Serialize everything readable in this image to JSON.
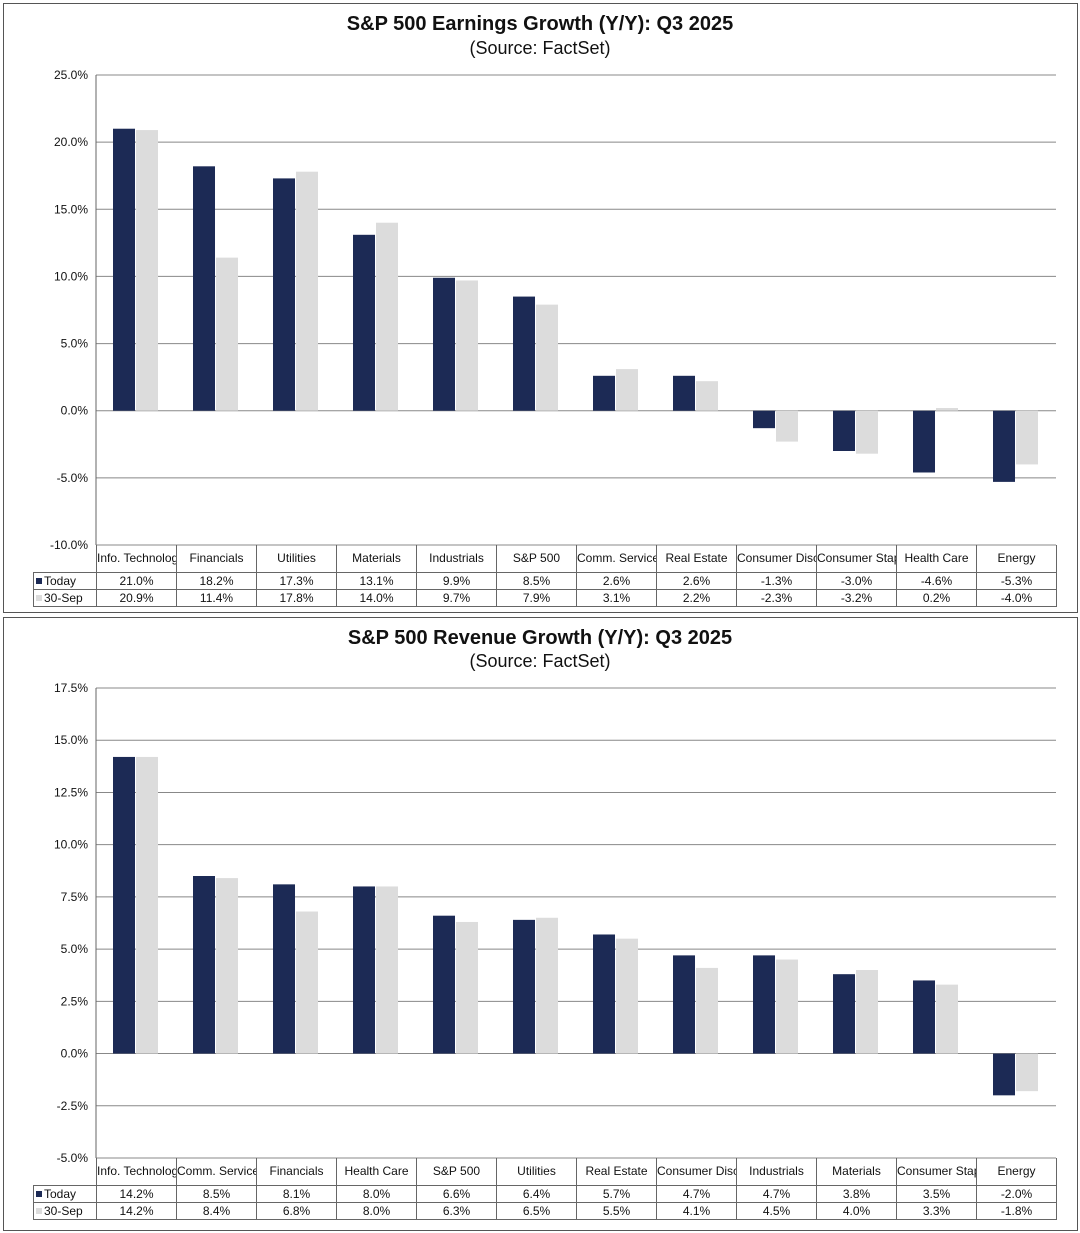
{
  "colors": {
    "today": "#1c2a55",
    "sep30": "#dcdcdc",
    "grid": "#888888"
  },
  "chart_data": [
    {
      "type": "bar",
      "title": "S&P 500 Earnings Growth (Y/Y): Q3 2025",
      "subtitle": "(Source: FactSet)",
      "categories": [
        "Info. Technology",
        "Financials",
        "Utilities",
        "Materials",
        "Industrials",
        "S&P 500",
        "Comm. Services",
        "Real Estate",
        "Consumer Disc.",
        "Consumer Staples",
        "Health Care",
        "Energy"
      ],
      "series": [
        {
          "name": "Today",
          "values": [
            21.0,
            18.2,
            17.3,
            13.1,
            9.9,
            8.5,
            2.6,
            2.6,
            -1.3,
            -3.0,
            -4.6,
            -5.3
          ],
          "labels": [
            "21.0%",
            "18.2%",
            "17.3%",
            "13.1%",
            "9.9%",
            "8.5%",
            "2.6%",
            "2.6%",
            "-1.3%",
            "-3.0%",
            "-4.6%",
            "-5.3%"
          ]
        },
        {
          "name": "30-Sep",
          "values": [
            20.9,
            11.4,
            17.8,
            14.0,
            9.7,
            7.9,
            3.1,
            2.2,
            -2.3,
            -3.2,
            0.2,
            -4.0
          ],
          "labels": [
            "20.9%",
            "11.4%",
            "17.8%",
            "14.0%",
            "9.7%",
            "7.9%",
            "3.1%",
            "2.2%",
            "-2.3%",
            "-3.2%",
            "0.2%",
            "-4.0%"
          ]
        }
      ],
      "ylim": [
        -10,
        25
      ],
      "yticks": [
        "25.0%",
        "20.0%",
        "15.0%",
        "10.0%",
        "5.0%",
        "0.0%",
        "-5.0%",
        "-10.0%"
      ],
      "ytick_values": [
        25,
        20,
        15,
        10,
        5,
        0,
        -5,
        -10
      ],
      "grid": true,
      "legend": "data-table"
    },
    {
      "type": "bar",
      "title": "S&P 500 Revenue Growth (Y/Y): Q3 2025",
      "subtitle": "(Source: FactSet)",
      "categories": [
        "Info. Technology",
        "Comm. Services",
        "Financials",
        "Health Care",
        "S&P 500",
        "Utilities",
        "Real Estate",
        "Consumer Disc.",
        "Industrials",
        "Materials",
        "Consumer Staples",
        "Energy"
      ],
      "series": [
        {
          "name": "Today",
          "values": [
            14.2,
            8.5,
            8.1,
            8.0,
            6.6,
            6.4,
            5.7,
            4.7,
            4.7,
            3.8,
            3.5,
            -2.0
          ],
          "labels": [
            "14.2%",
            "8.5%",
            "8.1%",
            "8.0%",
            "6.6%",
            "6.4%",
            "5.7%",
            "4.7%",
            "4.7%",
            "3.8%",
            "3.5%",
            "-2.0%"
          ]
        },
        {
          "name": "30-Sep",
          "values": [
            14.2,
            8.4,
            6.8,
            8.0,
            6.3,
            6.5,
            5.5,
            4.1,
            4.5,
            4.0,
            3.3,
            -1.8
          ],
          "labels": [
            "14.2%",
            "8.4%",
            "6.8%",
            "8.0%",
            "6.3%",
            "6.5%",
            "5.5%",
            "4.1%",
            "4.5%",
            "4.0%",
            "3.3%",
            "-1.8%"
          ]
        }
      ],
      "ylim": [
        -5,
        17.5
      ],
      "yticks": [
        "17.5%",
        "15.0%",
        "12.5%",
        "10.0%",
        "7.5%",
        "5.0%",
        "2.5%",
        "0.0%",
        "-2.5%",
        "-5.0%"
      ],
      "ytick_values": [
        17.5,
        15,
        12.5,
        10,
        7.5,
        5,
        2.5,
        0,
        -2.5,
        -5
      ],
      "grid": true,
      "legend": "data-table"
    }
  ]
}
